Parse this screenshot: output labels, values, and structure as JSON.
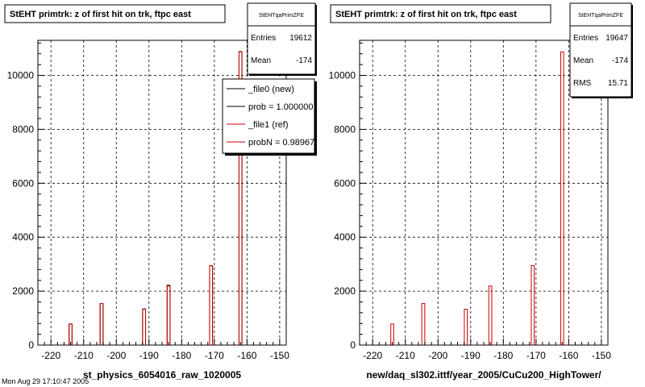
{
  "chart_data": [
    {
      "type": "bar",
      "title": "StEHT primtrk: z of first hit on trk, ftpc east",
      "xlabel": "st_physics_6054016_raw_1020005",
      "ylabel": "",
      "xlim": [
        -224,
        -148
      ],
      "ylim": [
        0,
        11300
      ],
      "x_ticks": [
        -220,
        -210,
        -200,
        -190,
        -180,
        -170,
        -160,
        -150
      ],
      "y_ticks": [
        0,
        2000,
        4000,
        6000,
        8000,
        10000
      ],
      "grid": true,
      "bin_width": 0.9,
      "series": [
        {
          "color": "#000000",
          "x": [
            -214.0,
            -204.5,
            -191.5,
            -184.0,
            -171.0,
            -162.0
          ],
          "values": [
            780,
            1540,
            1340,
            2220,
            2940,
            10880
          ]
        },
        {
          "color": "#cc0000",
          "x": [
            -214.0,
            -204.5,
            -191.5,
            -184.0,
            -171.0,
            -162.0
          ],
          "values": [
            780,
            1540,
            1330,
            2190,
            2950,
            10870
          ]
        }
      ],
      "stats_box": {
        "title": "StEHTqaPrimZFE",
        "rows": [
          {
            "label": "Entries",
            "value": "19612"
          },
          {
            "label": "Mean",
            "value": "-174"
          }
        ]
      },
      "legend": {
        "position": "top-right",
        "entries": [
          {
            "label": "_file0 (new)",
            "color": "#000000"
          },
          {
            "label": "prob = 1.000000",
            "color": "#000000"
          },
          {
            "label": "_file1 (ref)",
            "color": "#cc0000"
          },
          {
            "label": "probN = 0.989676",
            "color": "#cc0000"
          }
        ]
      }
    },
    {
      "type": "bar",
      "title": "StEHT primtrk: z of first hit on trk, ftpc east",
      "xlabel": "new/daq_sl302.ittf/year_2005/CuCu200_HighTower/",
      "ylabel": "",
      "xlim": [
        -224,
        -148
      ],
      "ylim": [
        0,
        11300
      ],
      "x_ticks": [
        -220,
        -210,
        -200,
        -190,
        -180,
        -170,
        -160,
        -150
      ],
      "y_ticks": [
        0,
        2000,
        4000,
        6000,
        8000,
        10000
      ],
      "grid": true,
      "bin_width": 0.9,
      "series": [
        {
          "color": "#cc0000",
          "x": [
            -214.0,
            -204.5,
            -191.5,
            -184.0,
            -171.0,
            -162.0
          ],
          "values": [
            780,
            1540,
            1330,
            2190,
            2950,
            10870
          ]
        }
      ],
      "stats_box": {
        "title": "StEHTqaPrimZFE",
        "rows": [
          {
            "label": "Entries",
            "value": "19647"
          },
          {
            "label": "Mean",
            "value": "-174"
          },
          {
            "label": "RMS",
            "value": "15.71"
          }
        ]
      }
    }
  ],
  "footer": {
    "stamp": "Mon Aug 29 17:10:47 2005"
  }
}
